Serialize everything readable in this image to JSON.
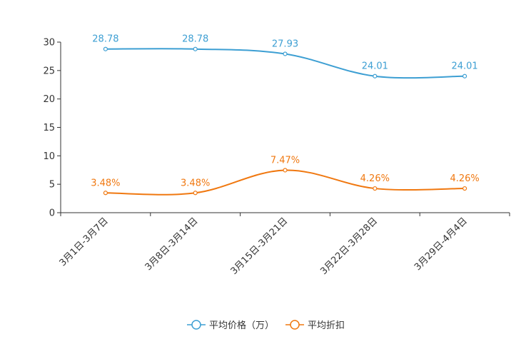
{
  "chart_data": {
    "type": "line",
    "categories": [
      "3月1日-3月7日",
      "3月8日-3月14日",
      "3月15日-3月21日",
      "3月22日-3月28日",
      "3月29日-4月4日"
    ],
    "ylim": [
      0,
      30
    ],
    "yticks": [
      0,
      5,
      10,
      15,
      20,
      25,
      30
    ],
    "series": [
      {
        "name": "平均价格（万）",
        "color": "#3d9fd3",
        "values": [
          28.78,
          28.78,
          27.93,
          24.01,
          24.01
        ],
        "labels": [
          "28.78",
          "28.78",
          "27.93",
          "24.01",
          "24.01"
        ]
      },
      {
        "name": "平均折扣",
        "color": "#f07810",
        "values": [
          3.48,
          3.48,
          7.47,
          4.26,
          4.26
        ],
        "labels": [
          "3.48%",
          "3.48%",
          "7.47%",
          "4.26%",
          "4.26%"
        ]
      }
    ]
  }
}
